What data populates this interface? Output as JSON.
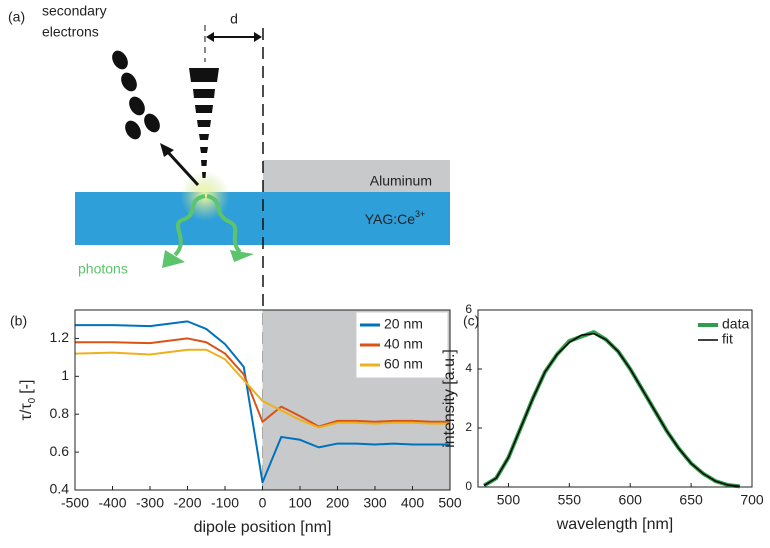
{
  "diagram": {
    "panel_label": "(a)",
    "electrons_label": [
      "secondary",
      "electrons"
    ],
    "distance_label": "d",
    "metal_label": "Aluminum",
    "crystal_label": "YAG:Ce",
    "crystal_label_sup": "3+",
    "photons_label": "photons"
  },
  "chart_data": [
    {
      "type": "line",
      "panel_label": "(b)",
      "xlabel": "dipole position [nm]",
      "ylabel": "τ/τ",
      "ylabel_sub": "0",
      "ylabel_unit": "[-]",
      "x": [
        -500,
        -400,
        -300,
        -200,
        -150,
        -100,
        -50,
        0,
        50,
        100,
        150,
        200,
        250,
        300,
        350,
        400,
        450,
        500
      ],
      "series": [
        {
          "name": "20 nm",
          "color": "#0072bd",
          "values": [
            1.27,
            1.27,
            1.265,
            1.29,
            1.25,
            1.17,
            1.05,
            0.44,
            0.68,
            0.665,
            0.625,
            0.645,
            0.645,
            0.64,
            0.645,
            0.64,
            0.64,
            0.64
          ]
        },
        {
          "name": "40 nm",
          "color": "#d95319",
          "values": [
            1.18,
            1.18,
            1.175,
            1.2,
            1.18,
            1.12,
            1.01,
            0.76,
            0.84,
            0.79,
            0.735,
            0.765,
            0.765,
            0.76,
            0.765,
            0.765,
            0.76,
            0.76
          ]
        },
        {
          "name": "60 nm",
          "color": "#edb120",
          "values": [
            1.12,
            1.125,
            1.115,
            1.14,
            1.14,
            1.09,
            0.98,
            0.87,
            0.82,
            0.77,
            0.73,
            0.755,
            0.755,
            0.75,
            0.755,
            0.755,
            0.75,
            0.75
          ]
        }
      ],
      "xlim": [
        -500,
        500
      ],
      "xticks": [
        -500,
        -400,
        -300,
        -200,
        -100,
        0,
        100,
        200,
        300,
        400,
        500
      ],
      "ylim": [
        0.4,
        1.35
      ],
      "yticks": [
        0.4,
        0.6,
        0.8,
        1,
        1.2
      ],
      "legend": "upper right",
      "shade_xrange": [
        0,
        500
      ],
      "shade_color": "#c8c9cb"
    },
    {
      "type": "line",
      "panel_label": "(c)",
      "xlabel": "wavelength [nm]",
      "ylabel": "intensity [a.u.]",
      "x": [
        480,
        490,
        500,
        510,
        520,
        530,
        540,
        550,
        560,
        570,
        580,
        590,
        600,
        610,
        620,
        630,
        640,
        650,
        660,
        670,
        680,
        690
      ],
      "series": [
        {
          "name": "data",
          "color": "#2e9e4a",
          "linewidth": 4,
          "values": [
            0.05,
            0.3,
            1.0,
            2.0,
            3.0,
            3.9,
            4.5,
            4.95,
            5.1,
            5.25,
            5.0,
            4.6,
            4.0,
            3.3,
            2.6,
            1.9,
            1.3,
            0.8,
            0.45,
            0.2,
            0.07,
            0.02
          ]
        },
        {
          "name": "fit",
          "color": "#000000",
          "linewidth": 1.5,
          "values": [
            0.05,
            0.3,
            1.0,
            2.0,
            3.0,
            3.9,
            4.5,
            4.9,
            5.15,
            5.2,
            5.0,
            4.6,
            4.0,
            3.3,
            2.6,
            1.9,
            1.3,
            0.8,
            0.45,
            0.2,
            0.07,
            0.02
          ]
        }
      ],
      "xlim": [
        475,
        700
      ],
      "xticks": [
        500,
        550,
        600,
        650,
        700
      ],
      "ylim": [
        0,
        6
      ],
      "yticks": [
        0,
        2,
        4,
        6
      ],
      "legend": "upper right"
    }
  ]
}
